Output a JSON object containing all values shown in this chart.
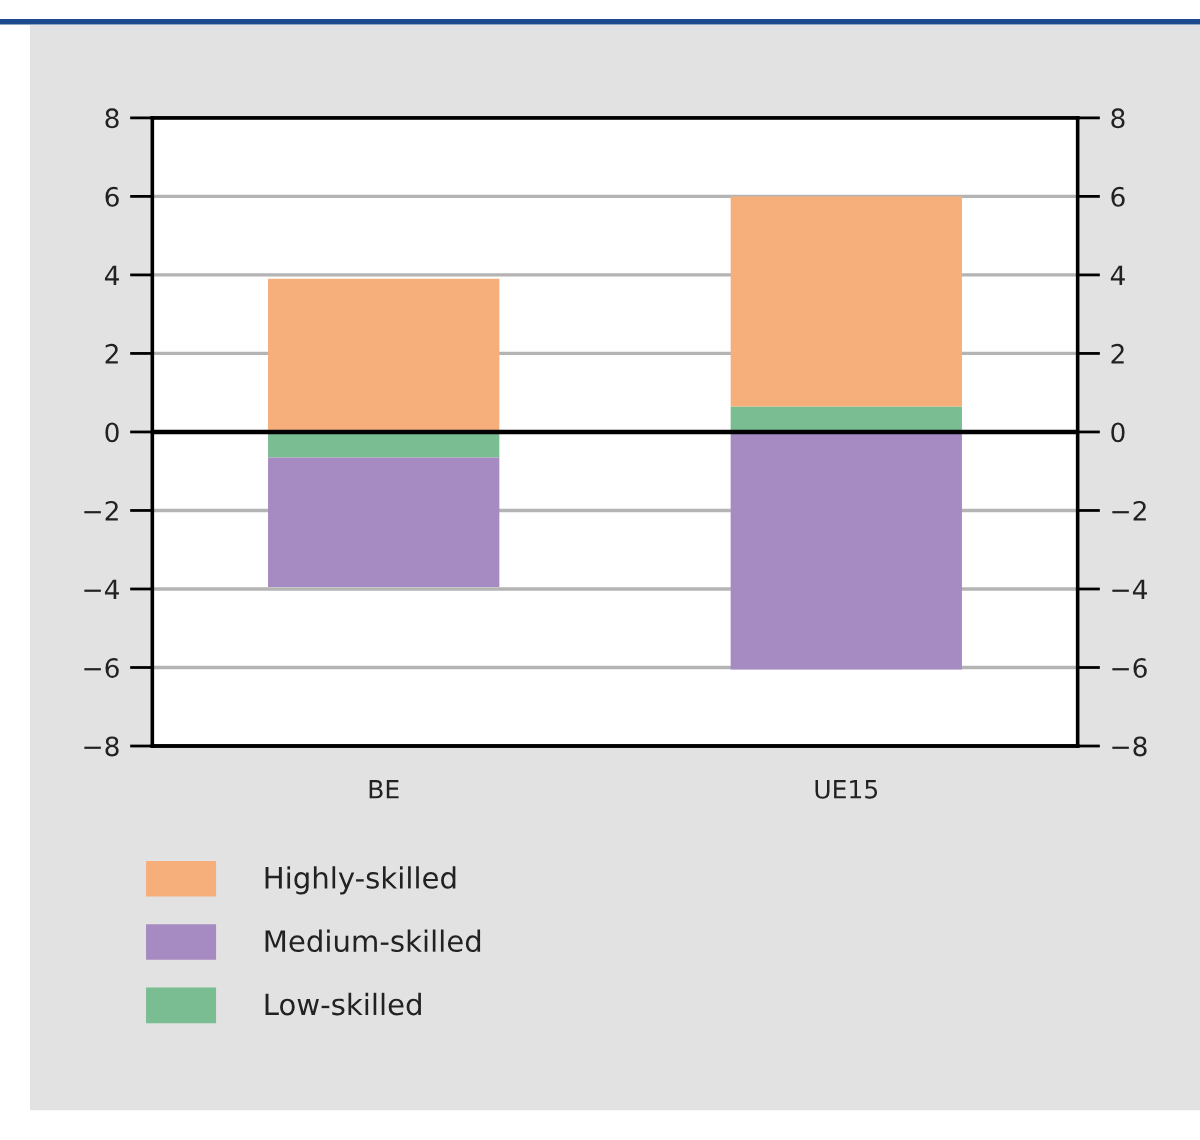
{
  "chart_data": {
    "type": "bar",
    "stacked": true,
    "categories": [
      "BE",
      "UE15"
    ],
    "series": [
      {
        "name": "Low-skilled",
        "color": "#7abd93",
        "values": [
          -0.65,
          0.65
        ]
      },
      {
        "name": "Medium-skilled",
        "color": "#a68ac2",
        "values": [
          -3.3,
          -6.05
        ]
      },
      {
        "name": "Highly-skilled",
        "color": "#f6ae7b",
        "values": [
          3.9,
          5.35
        ]
      }
    ],
    "ylim": [
      -8,
      8
    ],
    "yticks": [
      -8,
      -6,
      -4,
      -2,
      0,
      2,
      4,
      6,
      8
    ],
    "y2lim": [
      -8,
      8
    ],
    "y2ticks": [
      -8,
      -6,
      -4,
      -2,
      0,
      2,
      4,
      6,
      8
    ],
    "grid": "y",
    "legend": "bottom",
    "ref_lines": [
      {
        "axis": "y",
        "value": 0,
        "color": "#000000"
      }
    ]
  }
}
